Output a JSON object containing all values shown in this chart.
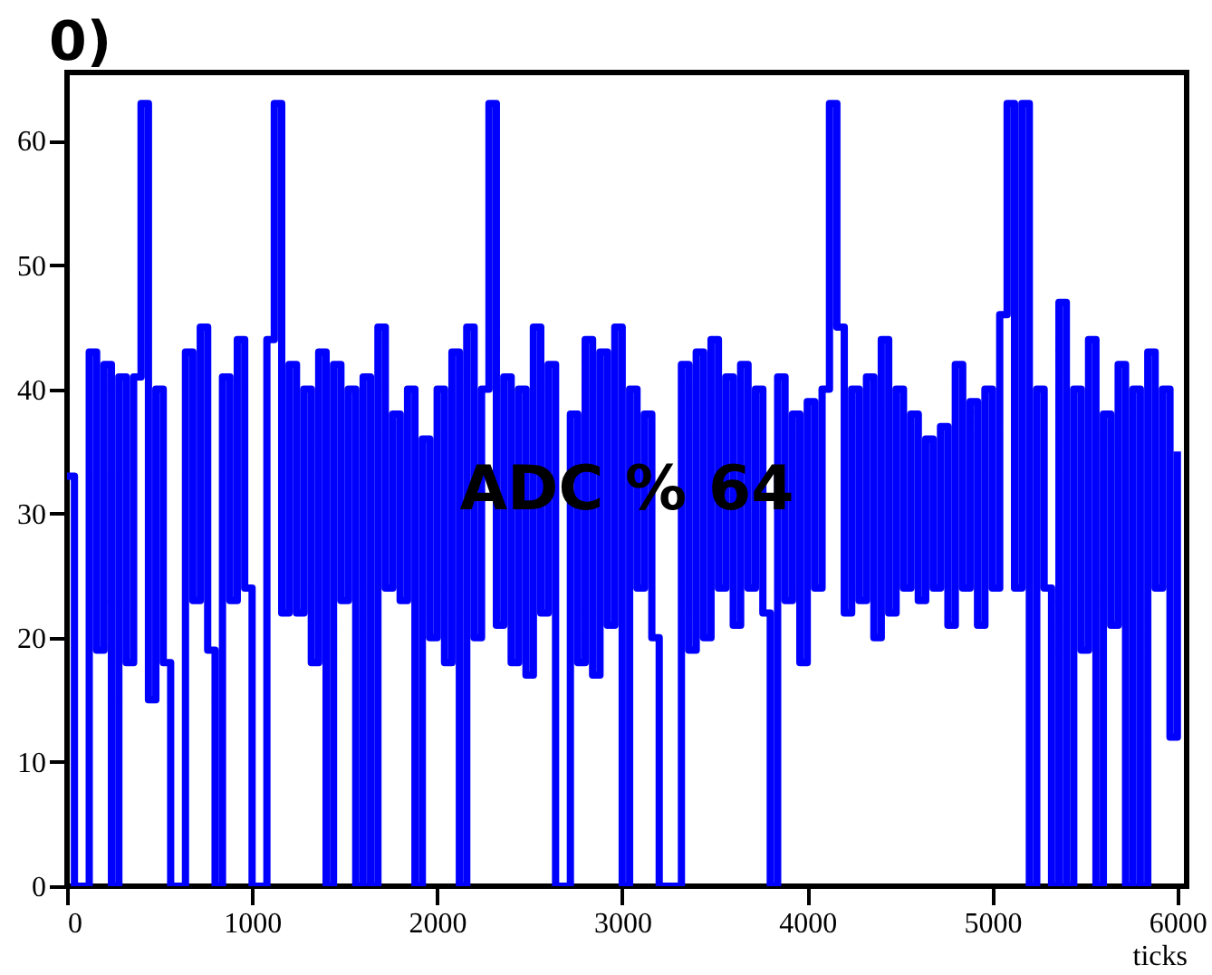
{
  "chart_data": {
    "type": "step",
    "title": "0)",
    "xlabel": "ticks",
    "annotations": [
      "ADC % 64"
    ],
    "x": [
      0,
      40,
      80,
      120,
      160,
      200,
      240,
      280,
      320,
      360,
      400,
      440,
      480,
      520,
      560,
      600,
      640,
      680,
      720,
      760,
      800,
      840,
      880,
      920,
      960,
      1000,
      1040,
      1080,
      1120,
      1160,
      1200,
      1240,
      1280,
      1320,
      1360,
      1400,
      1440,
      1480,
      1520,
      1560,
      1600,
      1640,
      1680,
      1720,
      1760,
      1800,
      1840,
      1880,
      1920,
      1960,
      2000,
      2040,
      2080,
      2120,
      2160,
      2200,
      2240,
      2280,
      2320,
      2360,
      2400,
      2440,
      2480,
      2520,
      2560,
      2600,
      2640,
      2680,
      2720,
      2760,
      2800,
      2840,
      2880,
      2920,
      2960,
      3000,
      3040,
      3080,
      3120,
      3160,
      3200,
      3240,
      3280,
      3320,
      3360,
      3400,
      3440,
      3480,
      3520,
      3560,
      3600,
      3640,
      3680,
      3720,
      3760,
      3800,
      3840,
      3880,
      3920,
      3960,
      4000,
      4040,
      4080,
      4120,
      4160,
      4200,
      4240,
      4280,
      4320,
      4360,
      4400,
      4440,
      4480,
      4520,
      4560,
      4600,
      4640,
      4680,
      4720,
      4760,
      4800,
      4840,
      4880,
      4920,
      4960,
      5000,
      5040,
      5080,
      5120,
      5160,
      5200,
      5240,
      5280,
      5320,
      5360,
      5400,
      5440,
      5480,
      5520,
      5560,
      5600,
      5640,
      5680,
      5720,
      5760,
      5800,
      5840,
      5880,
      5920,
      5960,
      6000
    ],
    "series": [
      {
        "color": "#0000ff",
        "values": [
          33,
          0,
          0,
          43,
          19,
          42,
          0,
          41,
          18,
          41,
          63,
          15,
          40,
          18,
          0,
          0,
          43,
          23,
          45,
          19,
          0,
          41,
          23,
          44,
          24,
          0,
          0,
          44,
          63,
          22,
          42,
          22,
          40,
          18,
          43,
          0,
          42,
          23,
          40,
          0,
          41,
          0,
          45,
          24,
          38,
          23,
          40,
          0,
          36,
          20,
          40,
          18,
          43,
          0,
          45,
          20,
          40,
          63,
          21,
          41,
          18,
          40,
          17,
          45,
          22,
          42,
          0,
          0,
          38,
          18,
          44,
          17,
          43,
          21,
          45,
          0,
          40,
          24,
          38,
          20,
          0,
          0,
          0,
          42,
          19,
          43,
          20,
          44,
          24,
          41,
          21,
          42,
          24,
          40,
          22,
          0,
          41,
          23,
          38,
          18,
          39,
          24,
          40,
          63,
          45,
          22,
          40,
          23,
          41,
          20,
          44,
          22,
          40,
          24,
          38,
          23,
          36,
          24,
          37,
          21,
          42,
          24,
          39,
          21,
          40,
          24,
          46,
          63,
          24,
          63,
          0,
          40,
          24,
          0,
          47,
          0,
          40,
          19,
          44,
          0,
          38,
          21,
          42,
          0,
          40,
          0,
          43,
          24,
          40,
          12,
          35
        ]
      }
    ],
    "xlim": [
      0,
      6050
    ],
    "ylim": [
      0,
      65.5
    ],
    "xticks": [
      0,
      1000,
      2000,
      3000,
      4000,
      5000,
      6000
    ],
    "yticks": [
      0,
      10,
      20,
      30,
      40,
      50,
      60
    ],
    "grid": false,
    "line_style": "solid",
    "marker": "none"
  }
}
